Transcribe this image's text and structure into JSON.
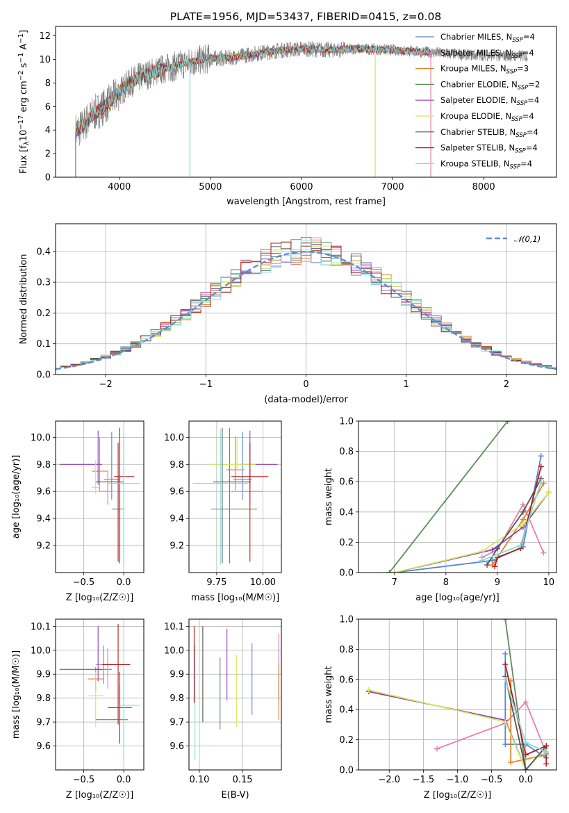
{
  "figure": {
    "title": "PLATE=1956, MJD=53437, FIBERID=0415, z=0.08"
  },
  "models": [
    {
      "name": "Chabrier MILES",
      "nssp": "4",
      "color": "#5a84d6",
      "label_main": "Chabrier MILES, N",
      "label_sub": "SSP",
      "label_end": "=4"
    },
    {
      "name": "Salpeter MILES",
      "nssp": "4",
      "color": "#e57fae",
      "label_main": "Salpeter MILES, N",
      "label_sub": "SSP",
      "label_end": "=4"
    },
    {
      "name": "Kroupa MILES",
      "nssp": "3",
      "color": "#e0822b",
      "label_main": "Kroupa MILES, N",
      "label_sub": "SSP",
      "label_end": "=3"
    },
    {
      "name": "Chabrier ELODIE",
      "nssp": "2",
      "color": "#5b8c5a",
      "label_main": "Chabrier ELODIE, N",
      "label_sub": "SSP",
      "label_end": "=2"
    },
    {
      "name": "Salpeter ELODIE",
      "nssp": "4",
      "color": "#8f3fb8",
      "label_main": "Salpeter ELODIE, N",
      "label_sub": "SSP",
      "label_end": "=4"
    },
    {
      "name": "Kroupa ELODIE",
      "nssp": "4",
      "color": "#d6e65c",
      "label_main": "Kroupa ELODIE, N",
      "label_sub": "SSP",
      "label_end": "=4"
    },
    {
      "name": "Chabrier STELIB",
      "nssp": "4",
      "color": "#555555",
      "label_main": "Chabrier STELIB, N",
      "label_sub": "SSP",
      "label_end": "=4"
    },
    {
      "name": "Salpeter STELIB",
      "nssp": "4",
      "color": "#b01c1c",
      "label_main": "Salpeter STELIB, N",
      "label_sub": "SSP",
      "label_end": "=4"
    },
    {
      "name": "Kroupa STELIB",
      "nssp": "4",
      "color": "#7fdcdc",
      "label_main": "Kroupa STELIB, N",
      "label_sub": "SSP",
      "label_end": "=4"
    }
  ],
  "chart_data": [
    {
      "id": "spectrum",
      "type": "line",
      "xlabel": "wavelength [Angstrom, rest frame]",
      "ylabel": "Flux [f_λ10^-17 erg cm^-2 s^-1 A^-1]",
      "xlim": [
        3300,
        8800
      ],
      "ylim": [
        0,
        12.8
      ],
      "xticks": [
        4000,
        5000,
        6000,
        7000,
        8000
      ],
      "yticks": [
        0,
        2,
        4,
        6,
        8,
        10,
        12
      ],
      "data_color": "#808080",
      "data_range": [
        3520,
        8480
      ],
      "model_range": [
        3520,
        7420
      ],
      "continuum_points": [
        {
          "x": 3520,
          "y": 3.9
        },
        {
          "x": 3600,
          "y": 4.3
        },
        {
          "x": 3700,
          "y": 5.3
        },
        {
          "x": 3800,
          "y": 5.8
        },
        {
          "x": 3900,
          "y": 6.4
        },
        {
          "x": 4000,
          "y": 7.2
        },
        {
          "x": 4100,
          "y": 7.9
        },
        {
          "x": 4200,
          "y": 8.4
        },
        {
          "x": 4400,
          "y": 9.0
        },
        {
          "x": 4600,
          "y": 9.4
        },
        {
          "x": 4800,
          "y": 9.8
        },
        {
          "x": 5000,
          "y": 10.1
        },
        {
          "x": 5200,
          "y": 10.1
        },
        {
          "x": 5500,
          "y": 10.5
        },
        {
          "x": 5800,
          "y": 10.8
        },
        {
          "x": 6000,
          "y": 10.9
        },
        {
          "x": 6300,
          "y": 10.8
        },
        {
          "x": 6600,
          "y": 10.9
        },
        {
          "x": 7000,
          "y": 10.8
        },
        {
          "x": 7400,
          "y": 10.6
        },
        {
          "x": 7800,
          "y": 10.4
        },
        {
          "x": 8200,
          "y": 10.3
        },
        {
          "x": 8480,
          "y": 10.3
        }
      ],
      "spikes_to_zero": [
        {
          "x": 3520,
          "model": "Chabrier MILES"
        },
        {
          "x": 4775,
          "model": "Kroupa STELIB"
        },
        {
          "x": 6810,
          "model": "Kroupa ELODIE"
        },
        {
          "x": 7420,
          "model": "Salpeter MILES"
        }
      ]
    },
    {
      "id": "residual-histogram",
      "type": "histogram",
      "xlabel": "(data-model)/error",
      "ylabel": "Normed distribution",
      "xlim": [
        -2.5,
        2.5
      ],
      "ylim": [
        0,
        0.49
      ],
      "xticks": [
        -2,
        -1,
        0,
        1,
        2
      ],
      "yticks": [
        0.0,
        0.1,
        0.2,
        0.3,
        0.4
      ],
      "bin_width": 0.1,
      "gaussian": {
        "label": "𝒩(0,1)",
        "mean": 0,
        "sigma": 1,
        "color": "#5a8fd6"
      }
    },
    {
      "id": "age-vs-Z",
      "type": "errorbar",
      "xlabel": "Z [log₁₀(Z/Z☉)]",
      "ylabel": "age  [log₁₀(age/yr)]",
      "xlim": [
        -0.85,
        0.25
      ],
      "ylim": [
        9.0,
        10.12
      ],
      "xticks": [
        -0.5,
        0.0
      ],
      "yticks": [
        9.2,
        9.4,
        9.6,
        9.8,
        10.0
      ],
      "points": [
        {
          "model": "Chabrier MILES",
          "x": -0.15,
          "xerr": [
            0.1,
            0.1
          ],
          "y": 9.69,
          "yerr": [
            0.15,
            0.35
          ]
        },
        {
          "model": "Salpeter MILES",
          "x": -0.2,
          "xerr": [
            0.1,
            0.05
          ],
          "y": 9.6,
          "yerr": [
            0.1,
            0.15
          ]
        },
        {
          "model": "Kroupa MILES",
          "x": -0.3,
          "xerr": [
            0.1,
            0.1
          ],
          "y": 9.75,
          "yerr": [
            0.15,
            0.25
          ]
        },
        {
          "model": "Chabrier ELODIE",
          "x": -0.05,
          "xerr": [
            0.1,
            0.05
          ],
          "y": 9.47,
          "yerr": [
            0.4,
            0.6
          ]
        },
        {
          "model": "Salpeter ELODIE",
          "x": -0.32,
          "xerr": [
            0.48,
            0.05
          ],
          "y": 9.8,
          "yerr": [
            0.15,
            0.25
          ]
        },
        {
          "model": "Kroupa ELODIE",
          "x": -0.35,
          "xerr": [
            0.05,
            0.05
          ],
          "y": 9.63,
          "yerr": [
            0.05,
            0.2
          ]
        },
        {
          "model": "Chabrier STELIB",
          "x": -0.05,
          "xerr": [
            0.3,
            0.05
          ],
          "y": 9.67,
          "yerr": [
            0.6,
            0.4
          ]
        },
        {
          "model": "Salpeter STELIB",
          "x": -0.07,
          "xerr": [
            0.05,
            0.2
          ],
          "y": 9.71,
          "yerr": [
            0.63,
            0.25
          ]
        },
        {
          "model": "Kroupa STELIB",
          "x": 0.0,
          "xerr": [
            0.2,
            0.2
          ],
          "y": 9.66,
          "yerr": [
            0.6,
            0.4
          ]
        }
      ]
    },
    {
      "id": "age-vs-mass",
      "type": "errorbar",
      "xlabel": "mass [log₁₀(M/M☉)]",
      "ylabel": "",
      "xlim": [
        9.6,
        10.1
      ],
      "ylim": [
        9.0,
        10.12
      ],
      "xticks": [
        9.75,
        10.0
      ],
      "yticks": [
        9.2,
        9.4,
        9.6,
        9.8,
        10.0
      ],
      "points": [
        {
          "model": "Chabrier MILES",
          "x": 9.89,
          "xerr": [
            0.05,
            0.05
          ],
          "y": 9.69,
          "yerr": [
            0.15,
            0.35
          ]
        },
        {
          "model": "Salpeter MILES",
          "x": 9.93,
          "xerr": [
            0.1,
            0.07
          ],
          "y": 9.6,
          "yerr": [
            0.1,
            0.15
          ]
        },
        {
          "model": "Kroupa MILES",
          "x": 9.85,
          "xerr": [
            0.05,
            0.05
          ],
          "y": 9.76,
          "yerr": [
            0.15,
            0.25
          ]
        },
        {
          "model": "Chabrier ELODIE",
          "x": 9.82,
          "xerr": [
            0.1,
            0.15
          ],
          "y": 9.47,
          "yerr": [
            0.4,
            0.6
          ]
        },
        {
          "model": "Salpeter ELODIE",
          "x": 9.93,
          "xerr": [
            0.05,
            0.15
          ],
          "y": 9.8,
          "yerr": [
            0.15,
            0.25
          ]
        },
        {
          "model": "Kroupa ELODIE",
          "x": 9.86,
          "xerr": [
            0.15,
            0.1
          ],
          "y": 9.8,
          "yerr": [
            0.05,
            0.2
          ]
        },
        {
          "model": "Chabrier STELIB",
          "x": 9.78,
          "xerr": [
            0.05,
            0.15
          ],
          "y": 9.67,
          "yerr": [
            0.6,
            0.4
          ]
        },
        {
          "model": "Salpeter STELIB",
          "x": 9.93,
          "xerr": [
            0.1,
            0.1
          ],
          "y": 9.71,
          "yerr": [
            0.63,
            0.25
          ]
        },
        {
          "model": "Kroupa STELIB",
          "x": 9.77,
          "xerr": [
            0.15,
            0.15
          ],
          "y": 9.66,
          "yerr": [
            0.6,
            0.4
          ]
        }
      ]
    },
    {
      "id": "massweight-vs-age",
      "type": "line",
      "xlabel": "age  [log₁₀(age/yr)]",
      "ylabel": "mass weight",
      "xlim": [
        6.3,
        10.15
      ],
      "ylim": [
        0,
        1.0
      ],
      "xticks": [
        7,
        8,
        9,
        10
      ],
      "yticks": [
        0.0,
        0.2,
        0.4,
        0.6,
        0.8,
        1.0
      ],
      "series": [
        {
          "name": "Chabrier MILES",
          "x": [
            7.0,
            8.9,
            9.5,
            9.85
          ],
          "y": [
            0.0,
            0.08,
            0.17,
            0.77
          ]
        },
        {
          "name": "Salpeter MILES",
          "x": [
            8.7,
            9.0,
            9.5,
            9.9
          ],
          "y": [
            0.1,
            0.15,
            0.45,
            0.13
          ]
        },
        {
          "name": "Kroupa MILES",
          "x": [
            8.9,
            9.5,
            9.9
          ],
          "y": [
            0.05,
            0.35,
            0.59
          ]
        },
        {
          "name": "Chabrier ELODIE",
          "x": [
            6.9,
            9.2
          ],
          "y": [
            0.0,
            1.0
          ]
        },
        {
          "name": "Salpeter ELODIE",
          "x": [
            7.0,
            8.9,
            9.5,
            10.0
          ],
          "y": [
            0.0,
            0.15,
            0.3,
            0.53
          ]
        },
        {
          "name": "Kroupa ELODIE",
          "x": [
            7.0,
            8.7,
            9.5,
            10.0
          ],
          "y": [
            0.0,
            0.14,
            0.32,
            0.53
          ]
        },
        {
          "name": "Chabrier STELIB",
          "x": [
            8.8,
            9.0,
            9.5,
            9.85
          ],
          "y": [
            0.05,
            0.16,
            0.4,
            0.62
          ]
        },
        {
          "name": "Salpeter STELIB",
          "x": [
            8.95,
            9.0,
            9.45,
            9.85
          ],
          "y": [
            0.04,
            0.1,
            0.16,
            0.7
          ]
        },
        {
          "name": "Kroupa STELIB",
          "x": [
            8.7,
            9.0,
            9.45,
            9.85
          ],
          "y": [
            0.08,
            0.12,
            0.18,
            0.6
          ]
        }
      ]
    },
    {
      "id": "mass-vs-Z",
      "type": "errorbar",
      "xlabel": "Z [log₁₀(Z/Z☉)]",
      "ylabel": "mass [log₁₀(M/M☉)]",
      "xlim": [
        -0.85,
        0.25
      ],
      "ylim": [
        9.5,
        10.13
      ],
      "xticks": [
        -0.5,
        0.0
      ],
      "yticks": [
        9.6,
        9.7,
        9.8,
        9.9,
        10.0,
        10.1
      ],
      "points": [
        {
          "model": "Chabrier MILES",
          "x": -0.25,
          "xerr": [
            0.1,
            0.1
          ],
          "y": 9.92,
          "yerr": [
            0.06,
            0.1
          ]
        },
        {
          "model": "Salpeter MILES",
          "x": -0.2,
          "xerr": [
            0.15,
            0.05
          ],
          "y": 9.94,
          "yerr": [
            0.1,
            0.07
          ]
        },
        {
          "model": "Kroupa MILES",
          "x": -0.35,
          "xerr": [
            0.1,
            0.1
          ],
          "y": 9.88,
          "yerr": [
            0.05,
            0.05
          ]
        },
        {
          "model": "Chabrier ELODIE",
          "x": -0.05,
          "xerr": [
            0.3,
            0.1
          ],
          "y": 9.71,
          "yerr": [
            0.1,
            0.15
          ]
        },
        {
          "model": "Salpeter ELODIE",
          "x": -0.32,
          "xerr": [
            0.48,
            0.05
          ],
          "y": 9.92,
          "yerr": [
            0.05,
            0.18
          ]
        },
        {
          "model": "Kroupa ELODIE",
          "x": -0.35,
          "xerr": [
            0.1,
            0.1
          ],
          "y": 9.81,
          "yerr": [
            0.13,
            0.1
          ]
        },
        {
          "model": "Chabrier STELIB",
          "x": -0.05,
          "xerr": [
            0.15,
            0.15
          ],
          "y": 9.76,
          "yerr": [
            0.15,
            0.15
          ]
        },
        {
          "model": "Salpeter STELIB",
          "x": -0.07,
          "xerr": [
            0.2,
            0.15
          ],
          "y": 9.94,
          "yerr": [
            0.25,
            0.17
          ]
        },
        {
          "model": "Kroupa STELIB",
          "x": 0.0,
          "xerr": [
            0.05,
            0.2
          ],
          "y": 9.77,
          "yerr": [
            0.23,
            0.15
          ]
        }
      ]
    },
    {
      "id": "mass-vs-ebv",
      "type": "errorbar",
      "xlabel": "E(B-V)",
      "ylabel": "",
      "xlim": [
        0.088,
        0.195
      ],
      "ylim": [
        9.5,
        10.13
      ],
      "xticks": [
        0.1,
        0.15
      ],
      "yticks": [
        9.6,
        9.7,
        9.8,
        9.9,
        10.0,
        10.1
      ],
      "points": [
        {
          "model": "Chabrier MILES",
          "x": 0.161,
          "y": 9.88,
          "yerr": [
            0.15,
            0.15
          ]
        },
        {
          "model": "Salpeter MILES",
          "x": 0.192,
          "y": 9.94,
          "yerr": [
            0.15,
            0.13
          ]
        },
        {
          "model": "Kroupa MILES",
          "x": 0.192,
          "y": 9.84,
          "yerr": [
            0.13,
            0.1
          ]
        },
        {
          "model": "Chabrier ELODIE",
          "x": 0.124,
          "y": 9.82,
          "yerr": [
            0.15,
            0.15
          ]
        },
        {
          "model": "Salpeter ELODIE",
          "x": 0.132,
          "y": 9.92,
          "yerr": [
            0.13,
            0.17
          ]
        },
        {
          "model": "Kroupa ELODIE",
          "x": 0.143,
          "y": 9.83,
          "yerr": [
            0.15,
            0.15
          ]
        },
        {
          "model": "Chabrier STELIB",
          "x": 0.104,
          "y": 9.85,
          "yerr": [
            0.15,
            0.25
          ]
        },
        {
          "model": "Salpeter STELIB",
          "x": 0.094,
          "y": 9.93,
          "yerr": [
            0.15,
            0.17
          ]
        },
        {
          "model": "Kroupa STELIB",
          "x": 0.095,
          "y": 9.77,
          "yerr": [
            0.23,
            0.25
          ]
        }
      ]
    },
    {
      "id": "massweight-vs-Z",
      "type": "line",
      "xlabel": "Z [log₁₀(Z/Z☉)]",
      "ylabel": "mass weight",
      "xlim": [
        -2.45,
        0.45
      ],
      "ylim": [
        0,
        1.0
      ],
      "xticks": [
        -2.0,
        -1.5,
        -1.0,
        -0.5,
        0.0
      ],
      "yticks": [
        0.0,
        0.2,
        0.4,
        0.6,
        0.8,
        1.0
      ],
      "series": [
        {
          "name": "Chabrier MILES",
          "x": [
            -0.3,
            -0.3,
            0.0,
            0.3
          ],
          "y": [
            0.77,
            0.17,
            0.17,
            0.08
          ]
        },
        {
          "name": "Salpeter MILES",
          "x": [
            -1.3,
            -0.3,
            0.0,
            0.3
          ],
          "y": [
            0.14,
            0.31,
            0.45,
            0.11
          ]
        },
        {
          "name": "Kroupa MILES",
          "x": [
            -0.22,
            -0.22,
            0.3
          ],
          "y": [
            0.59,
            0.05,
            0.1
          ]
        },
        {
          "name": "Chabrier ELODIE",
          "x": [
            -0.3,
            0.0
          ],
          "y": [
            1.0,
            0.0
          ]
        },
        {
          "name": "Salpeter ELODIE",
          "x": [
            -2.3,
            -0.3,
            0.0,
            0.3
          ],
          "y": [
            0.52,
            0.33,
            0.0,
            0.15
          ]
        },
        {
          "name": "Kroupa ELODIE",
          "x": [
            -2.3,
            -0.3,
            0.0,
            0.3
          ],
          "y": [
            0.53,
            0.32,
            0.0,
            0.15
          ]
        },
        {
          "name": "Chabrier STELIB",
          "x": [
            -0.3,
            0.0,
            0.3
          ],
          "y": [
            0.62,
            0.0,
            0.16
          ]
        },
        {
          "name": "Salpeter STELIB",
          "x": [
            -0.3,
            0.0,
            0.3,
            0.3
          ],
          "y": [
            0.7,
            0.1,
            0.16,
            0.04
          ]
        },
        {
          "name": "Kroupa STELIB",
          "x": [
            -0.3,
            0.0,
            0.3
          ],
          "y": [
            0.6,
            0.18,
            0.12
          ]
        }
      ]
    }
  ]
}
